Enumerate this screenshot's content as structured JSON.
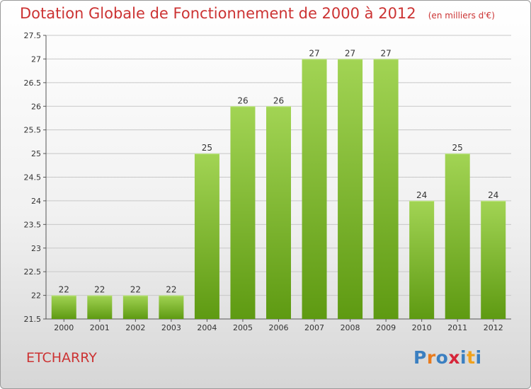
{
  "title": "Dotation Globale de Fonctionnement de 2000 à 2012",
  "subtitle": "(en milliers d'€)",
  "commune": "ETCHARRY",
  "logo": {
    "letters": [
      "P",
      "r",
      "o",
      "x",
      "i",
      "t",
      "i"
    ],
    "colors": [
      "#3a7fc1",
      "#e87b1e",
      "#3a7fc1",
      "#d6263a",
      "#3a7fc1",
      "#f0a21e",
      "#3a7fc1"
    ]
  },
  "colors": {
    "bar_top": "#a2d454",
    "bar_bottom": "#5e9a12",
    "grid": "#c8c8c8",
    "title": "#cc3333"
  },
  "chart_data": {
    "type": "bar",
    "categories": [
      "2000",
      "2001",
      "2002",
      "2003",
      "2004",
      "2005",
      "2006",
      "2007",
      "2008",
      "2009",
      "2010",
      "2011",
      "2012"
    ],
    "values": [
      22,
      22,
      22,
      22,
      25,
      26,
      26,
      27,
      27,
      27,
      24,
      25,
      24
    ],
    "data_labels": [
      "22",
      "22",
      "22",
      "22",
      "25",
      "26",
      "26",
      "27",
      "27",
      "27",
      "24",
      "25",
      "24"
    ],
    "title": "Dotation Globale de Fonctionnement de 2000 à 2012",
    "subtitle": "(en milliers d'€)",
    "xlabel": "",
    "ylabel": "",
    "ylim": [
      21.5,
      27.5
    ],
    "yticks": [
      "21.5",
      "22",
      "22.5",
      "23",
      "23.5",
      "24",
      "24.5",
      "25",
      "25.5",
      "26",
      "26.5",
      "27",
      "27.5"
    ],
    "grid": true,
    "legend": "none"
  }
}
